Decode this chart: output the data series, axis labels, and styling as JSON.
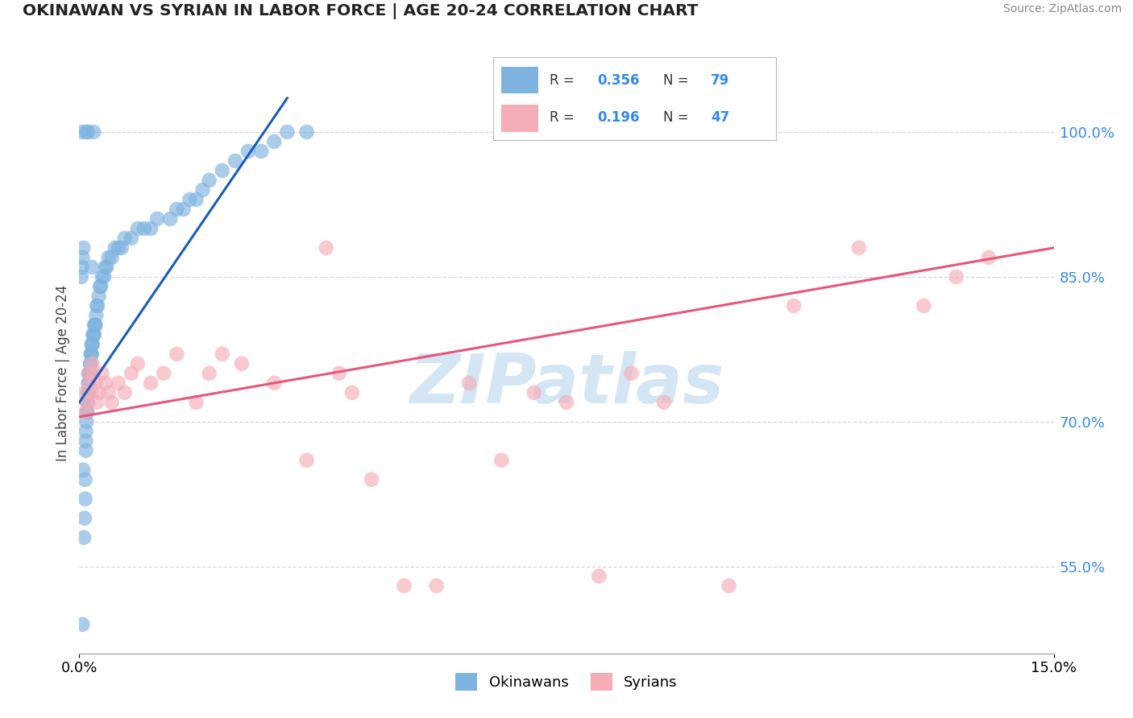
{
  "title": "OKINAWAN VS SYRIAN IN LABOR FORCE | AGE 20-24 CORRELATION CHART",
  "source_text": "Source: ZipAtlas.com",
  "ylabel": "In Labor Force | Age 20-24",
  "xlim": [
    0.0,
    15.0
  ],
  "ylim": [
    46.0,
    104.0
  ],
  "right_yticks": [
    55.0,
    70.0,
    85.0,
    100.0
  ],
  "right_ytick_labels": [
    "55.0%",
    "70.0%",
    "85.0%",
    "100.0%"
  ],
  "legend_r_okinawan": "0.356",
  "legend_n_okinawan": "79",
  "legend_r_syrian": "0.196",
  "legend_n_syrian": "47",
  "okinawan_color": "#7eb3e0",
  "syrian_color": "#f5adb8",
  "okinawan_line_color": "#1a5cb8",
  "syrian_line_color": "#e8567a",
  "background_color": "#ffffff",
  "grid_color": "#cccccc",
  "watermark_text": "ZIPatlas",
  "watermark_color": "#b8d4ee",
  "okinawan_x": [
    0.05,
    0.08,
    0.09,
    0.09,
    0.1,
    0.1,
    0.1,
    0.11,
    0.11,
    0.12,
    0.12,
    0.13,
    0.13,
    0.14,
    0.14,
    0.15,
    0.15,
    0.16,
    0.16,
    0.17,
    0.17,
    0.18,
    0.18,
    0.19,
    0.19,
    0.2,
    0.2,
    0.21,
    0.22,
    0.23,
    0.23,
    0.24,
    0.25,
    0.26,
    0.27,
    0.28,
    0.3,
    0.32,
    0.33,
    0.35,
    0.38,
    0.4,
    0.42,
    0.45,
    0.5,
    0.55,
    0.6,
    0.65,
    0.7,
    0.8,
    0.9,
    1.0,
    1.1,
    1.2,
    1.4,
    1.5,
    1.6,
    1.7,
    1.8,
    1.9,
    2.0,
    2.2,
    2.4,
    2.6,
    2.8,
    3.0,
    3.2,
    3.5,
    0.07,
    0.06,
    0.06,
    0.05,
    0.04,
    0.03,
    0.04,
    0.11,
    0.13,
    0.22,
    0.19
  ],
  "okinawan_y": [
    49.0,
    60.0,
    62.0,
    64.0,
    67.0,
    68.0,
    69.0,
    70.0,
    71.0,
    71.0,
    72.0,
    72.0,
    73.0,
    73.0,
    74.0,
    74.0,
    75.0,
    75.0,
    75.0,
    76.0,
    76.0,
    77.0,
    77.0,
    77.0,
    78.0,
    78.0,
    78.0,
    79.0,
    79.0,
    79.0,
    80.0,
    80.0,
    80.0,
    81.0,
    82.0,
    82.0,
    83.0,
    84.0,
    84.0,
    85.0,
    85.0,
    86.0,
    86.0,
    87.0,
    87.0,
    88.0,
    88.0,
    88.0,
    89.0,
    89.0,
    90.0,
    90.0,
    90.0,
    91.0,
    91.0,
    92.0,
    92.0,
    93.0,
    93.0,
    94.0,
    95.0,
    96.0,
    97.0,
    98.0,
    98.0,
    99.0,
    100.0,
    100.0,
    58.0,
    65.0,
    88.0,
    87.0,
    86.0,
    85.0,
    100.0,
    100.0,
    100.0,
    100.0,
    86.0
  ],
  "okinawan_line_x0": 0.0,
  "okinawan_line_y0": 72.0,
  "okinawan_line_x1": 3.2,
  "okinawan_line_y1": 103.5,
  "syrian_line_x0": 0.0,
  "syrian_line_y0": 70.5,
  "syrian_line_x1": 15.0,
  "syrian_line_y1": 88.0,
  "syrian_x": [
    0.08,
    0.1,
    0.12,
    0.14,
    0.16,
    0.18,
    0.2,
    0.22,
    0.25,
    0.27,
    0.3,
    0.35,
    0.4,
    0.45,
    0.5,
    0.6,
    0.7,
    0.8,
    0.9,
    1.1,
    1.3,
    1.5,
    1.8,
    2.0,
    2.2,
    2.5,
    3.0,
    3.5,
    4.0,
    4.5,
    5.0,
    5.5,
    6.0,
    6.5,
    7.0,
    7.5,
    8.0,
    8.5,
    9.0,
    10.0,
    11.0,
    12.0,
    13.0,
    13.5,
    14.0,
    3.8,
    4.2
  ],
  "syrian_y": [
    73.0,
    71.0,
    72.0,
    75.0,
    74.0,
    73.0,
    76.0,
    75.0,
    74.0,
    72.0,
    73.0,
    75.0,
    74.0,
    73.0,
    72.0,
    74.0,
    73.0,
    75.0,
    76.0,
    74.0,
    75.0,
    77.0,
    72.0,
    75.0,
    77.0,
    76.0,
    74.0,
    66.0,
    75.0,
    64.0,
    53.0,
    53.0,
    74.0,
    66.0,
    73.0,
    72.0,
    54.0,
    75.0,
    72.0,
    53.0,
    82.0,
    88.0,
    82.0,
    85.0,
    87.0,
    88.0,
    73.0
  ]
}
